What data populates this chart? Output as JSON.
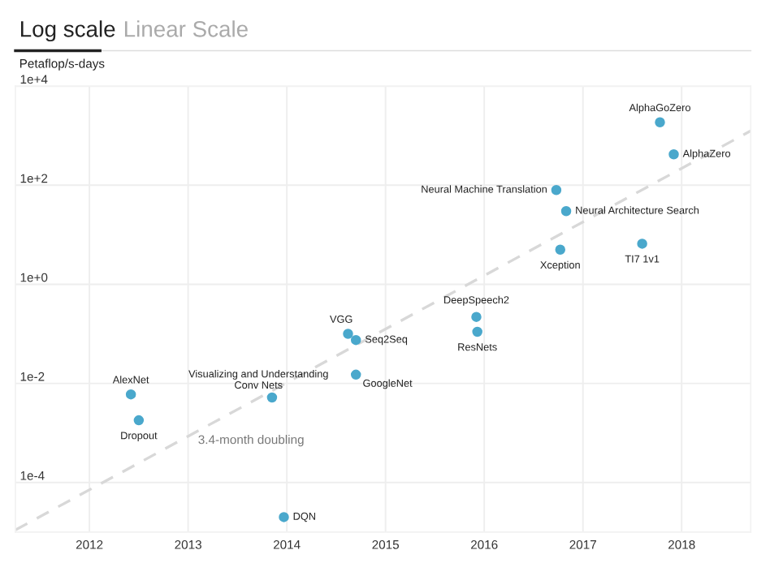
{
  "chart_data": {
    "type": "scatter",
    "ylabel": "Petaflop/s-days",
    "log": "y",
    "grid": true,
    "marker": "circle",
    "xlim": [
      2011.25,
      2018.7
    ],
    "xticks": [
      2012,
      2013,
      2014,
      2015,
      2016,
      2017,
      2018
    ],
    "ylim": [
      1e-05,
      10000
    ],
    "yticks": [
      {
        "value": 10000,
        "label": "1e+4"
      },
      {
        "value": 100,
        "label": "1e+2"
      },
      {
        "value": 1,
        "label": "1e+0"
      },
      {
        "value": 0.01,
        "label": "1e-2"
      },
      {
        "value": 0.0001,
        "label": "1e-4"
      }
    ],
    "annotations": [
      "Log scale",
      "Linear Scale",
      {
        "text": "3.4-month doubling",
        "x": 2013.1,
        "y": 0.0007
      }
    ],
    "series": [
      {
        "name": "AlphaGoZero",
        "color": "#4aa8cc",
        "x": [
          2017.78
        ],
        "values": [
          1860
        ]
      },
      {
        "name": "AlphaZero",
        "color": "#4aa8cc",
        "x": [
          2017.92
        ],
        "values": [
          420
        ]
      },
      {
        "name": "Neural Machine Translation",
        "color": "#4aa8cc",
        "x": [
          2016.73
        ],
        "values": [
          80
        ]
      },
      {
        "name": "Neural Architecture Search",
        "color": "#4aa8cc",
        "x": [
          2016.83
        ],
        "values": [
          30
        ]
      },
      {
        "name": "Xception",
        "color": "#4aa8cc",
        "x": [
          2016.77
        ],
        "values": [
          5
        ]
      },
      {
        "name": "TI7 1v1",
        "color": "#4aa8cc",
        "x": [
          2017.6
        ],
        "values": [
          6.6
        ]
      },
      {
        "name": "DeepSpeech2",
        "color": "#4aa8cc",
        "x": [
          2015.92
        ],
        "values": [
          0.22
        ]
      },
      {
        "name": "ResNets",
        "color": "#4aa8cc",
        "x": [
          2015.93
        ],
        "values": [
          0.11
        ]
      },
      {
        "name": "VGG",
        "color": "#4aa8cc",
        "x": [
          2014.62
        ],
        "values": [
          0.1
        ]
      },
      {
        "name": "Seq2Seq",
        "color": "#4aa8cc",
        "x": [
          2014.7
        ],
        "values": [
          0.075
        ]
      },
      {
        "name": "GoogleNet",
        "color": "#4aa8cc",
        "x": [
          2014.7
        ],
        "values": [
          0.015
        ]
      },
      {
        "name": "Visualizing and Understanding Conv Nets",
        "color": "#4aa8cc",
        "x": [
          2013.85
        ],
        "values": [
          0.0052
        ]
      },
      {
        "name": "AlexNet",
        "color": "#4aa8cc",
        "x": [
          2012.42
        ],
        "values": [
          0.006
        ]
      },
      {
        "name": "Dropout",
        "color": "#4aa8cc",
        "x": [
          2012.5
        ],
        "values": [
          0.0018
        ]
      },
      {
        "name": "DQN",
        "color": "#4aa8cc",
        "x": [
          2013.97
        ],
        "values": [
          2e-05
        ]
      },
      {
        "type": "line",
        "color": "#d8d8d8",
        "line_style": "dashed",
        "marker": "none",
        "x": [
          2011.25,
          2018.7
        ],
        "values": [
          1.1e-05,
          1250
        ]
      }
    ]
  }
}
